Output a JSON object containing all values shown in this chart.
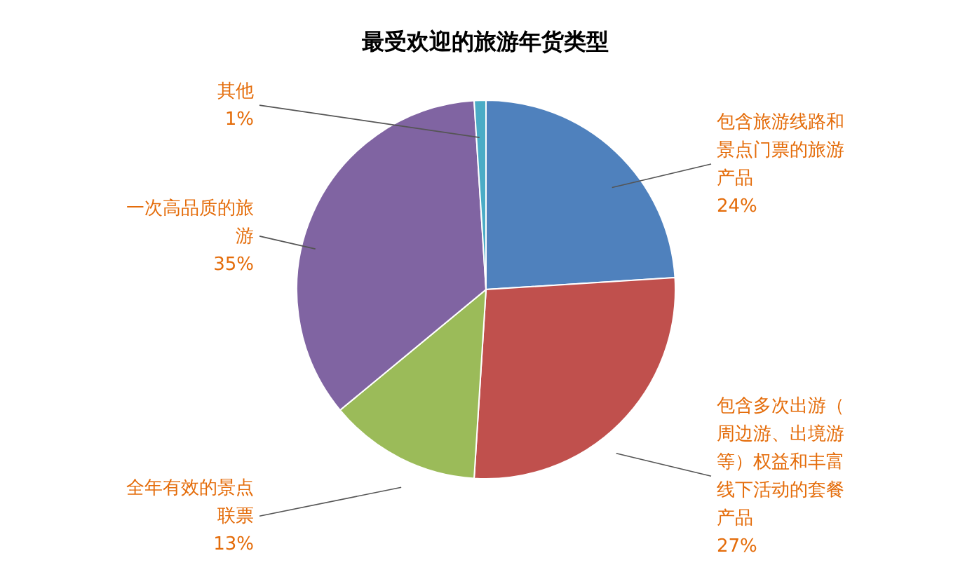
{
  "chart_data": {
    "type": "pie",
    "title": "最受欢迎的旅游年货类型",
    "categories": [
      "包含旅游线路和景点门票的旅游产品",
      "包含多次出游（周边游、出境游等）权益和丰富线下活动的套餐产品",
      "全年有效的景点联票",
      "一次高品质的旅游",
      "其他"
    ],
    "values": [
      24,
      27,
      13,
      35,
      1
    ],
    "colors": [
      "#4f81bd",
      "#c0504d",
      "#9bbb59",
      "#8064a2",
      "#4bacc6"
    ],
    "value_labels": [
      "24%",
      "27%",
      "13%",
      "35%",
      "1%"
    ]
  }
}
